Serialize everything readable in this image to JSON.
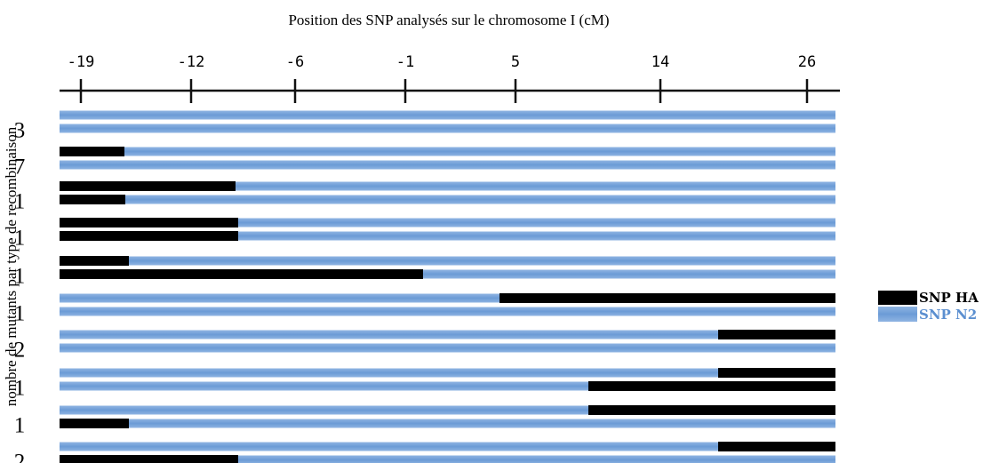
{
  "title": "Position des SNP analysés sur le chromosome I (cM)",
  "y_label": "nombre de mutants par type de recombinaison",
  "ticks": [
    "-19",
    "-12",
    "-6",
    "-1",
    "5",
    "14",
    "26"
  ],
  "rows": [
    "3",
    "7",
    "1",
    "1",
    "1",
    "1",
    "2",
    "1",
    "1",
    "2"
  ],
  "legend": [
    "SNP HA",
    "SNP N2"
  ]
}
